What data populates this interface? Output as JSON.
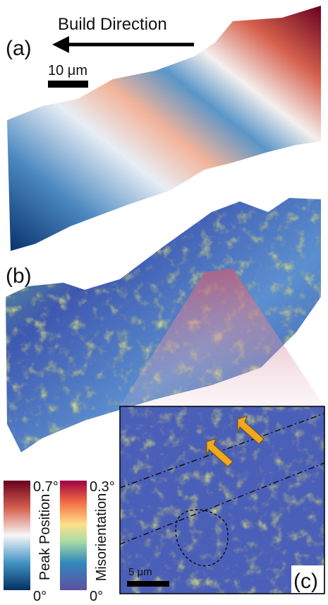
{
  "header": {
    "direction": "Build Direction"
  },
  "panels": [
    {
      "label": "(a)",
      "scale_bar": "10 μm"
    },
    {
      "label": "(b)"
    },
    {
      "label": "(c)",
      "scale_bar": "5 μm"
    }
  ],
  "colorbars": [
    {
      "title": "Peak Position",
      "max": "0.7°",
      "min": "0°"
    },
    {
      "title": "Misorientation",
      "max": "0.3°",
      "min": "0°"
    }
  ]
}
